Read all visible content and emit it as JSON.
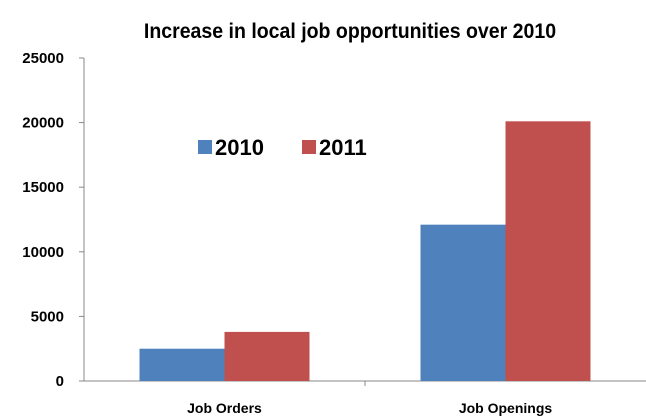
{
  "chart_data": {
    "type": "bar",
    "title": "Increase in local job opportunities over 2010",
    "categories": [
      "Job Orders",
      "Job Openings"
    ],
    "series": [
      {
        "name": "2010",
        "values": [
          2500,
          12100
        ],
        "color": "#4f81bd"
      },
      {
        "name": "2011",
        "values": [
          3800,
          20100
        ],
        "color": "#c0504d"
      }
    ],
    "xlabel": "",
    "ylabel": "",
    "ylim": [
      0,
      25000
    ],
    "yticks": [
      "0",
      "5000",
      "10000",
      "15000",
      "20000",
      "25000"
    ],
    "grid": false,
    "legend_position": "inside-top-left"
  }
}
